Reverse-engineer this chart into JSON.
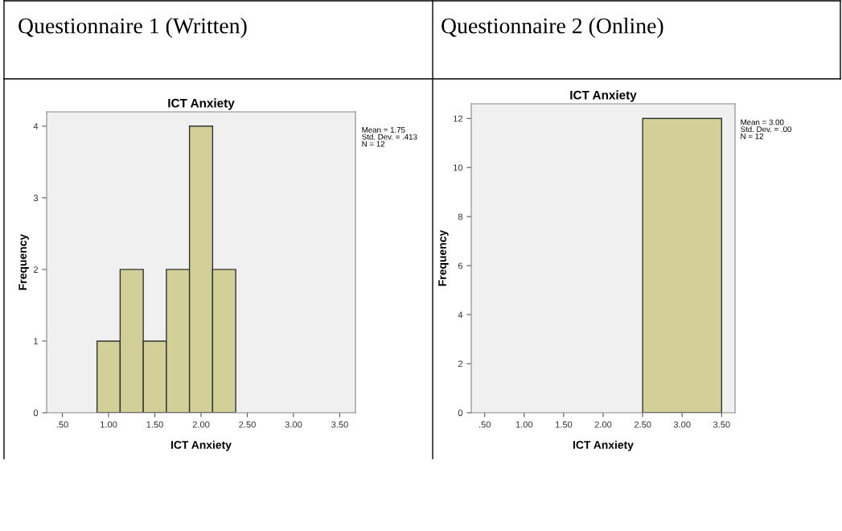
{
  "chart_data": [
    {
      "type": "histogram",
      "title": "Questionnaire 1 (Written)",
      "subtitle": "ICT Anxiety",
      "xlabel": "ICT Anxiety",
      "ylabel": "Frequency",
      "bins": [
        0.875,
        1.125,
        1.375,
        1.625,
        1.875,
        2.125,
        2.375
      ],
      "values": [
        1,
        2,
        1,
        2,
        4,
        2
      ],
      "color": "#d3cf98",
      "xlim": [
        0.33,
        3.67
      ],
      "ylim": [
        0,
        4.2
      ],
      "xticks": [
        {
          "value": 0.5,
          "label": ".50"
        },
        {
          "value": 1.0,
          "label": "1.00"
        },
        {
          "value": 1.5,
          "label": "1.50"
        },
        {
          "value": 2.0,
          "label": "2.00"
        },
        {
          "value": 2.5,
          "label": "2.50"
        },
        {
          "value": 3.0,
          "label": "3.00"
        },
        {
          "value": 3.5,
          "label": "3.50"
        }
      ],
      "yticks": [
        0,
        1,
        2,
        3,
        4
      ],
      "grid": false,
      "legend": false,
      "annotations": [
        "Mean = 1.75\nStd. Dev. = .413\nN = 12"
      ]
    },
    {
      "type": "histogram",
      "title": "Questionnaire 2 (Online)",
      "subtitle": "ICT Anxiety",
      "xlabel": "ICT Anxiety",
      "ylabel": "Frequency",
      "bins": [
        2.5,
        3.5
      ],
      "values": [
        12
      ],
      "color": "#d3cf98",
      "xlim": [
        0.33,
        3.67
      ],
      "ylim": [
        0,
        12.6
      ],
      "xticks": [
        {
          "value": 0.5,
          "label": ".50"
        },
        {
          "value": 1.0,
          "label": "1.00"
        },
        {
          "value": 1.5,
          "label": "1.50"
        },
        {
          "value": 2.0,
          "label": "2.00"
        },
        {
          "value": 2.5,
          "label": "2.50"
        },
        {
          "value": 3.0,
          "label": "3.00"
        },
        {
          "value": 3.5,
          "label": "3.50"
        }
      ],
      "yticks": [
        0,
        2,
        4,
        6,
        8,
        10,
        12
      ],
      "grid": false,
      "legend": false,
      "annotations": [
        "Mean = 3.00\nStd. Dev. = .00\nN = 12"
      ]
    }
  ]
}
